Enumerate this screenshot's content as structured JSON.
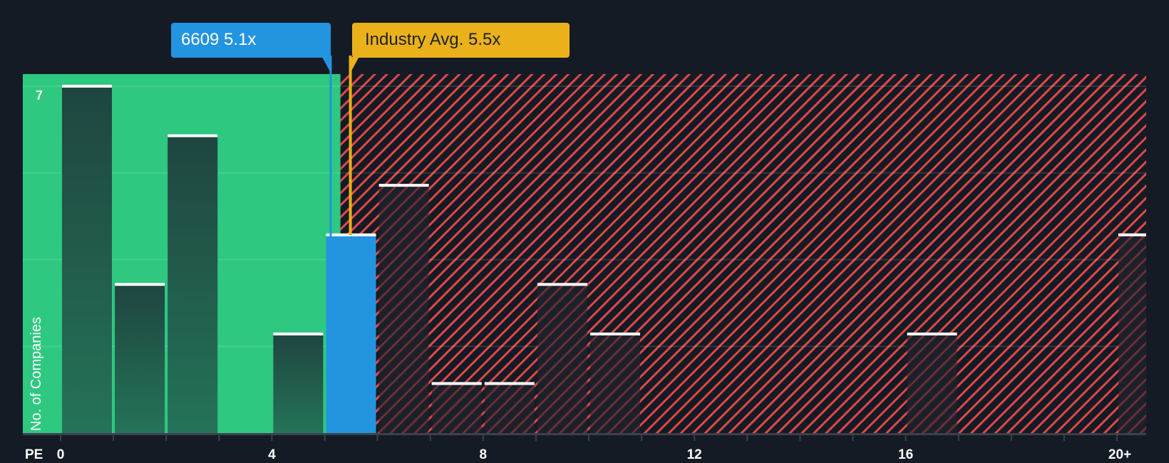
{
  "callouts": {
    "company": {
      "label": "6609 5.1x",
      "ticker": "6609",
      "value": 5.1,
      "color": "#2394df"
    },
    "industry": {
      "label": "Industry Avg. 5.5x",
      "value": 5.5,
      "color": "#ebb11a"
    }
  },
  "axis": {
    "x_label": "PE",
    "y_label": "No. of Companies",
    "y_top_tick": "7",
    "x_ticks": [
      "0",
      "4",
      "8",
      "12",
      "16",
      "20+"
    ]
  },
  "colors": {
    "background": "#151b24",
    "undervalued_zone": "#2ec880",
    "overvalued_hatch": "#e04848",
    "bar_dark": "#1f4a40",
    "highlight_bar": "#2394df"
  },
  "chart_data": {
    "type": "bar",
    "title": "",
    "xlabel": "PE",
    "ylabel": "No. of Companies",
    "categories": [
      "0-1",
      "1-2",
      "2-3",
      "3-4",
      "4-5",
      "5-6",
      "6-7",
      "7-8",
      "8-9",
      "9-10",
      "10-11",
      "11-12",
      "12-13",
      "13-14",
      "14-15",
      "15-16",
      "16-17",
      "17-18",
      "18-19",
      "19-20",
      "20+"
    ],
    "values": [
      7,
      3,
      6,
      0,
      2,
      4,
      5,
      1,
      1,
      3,
      2,
      0,
      0,
      0,
      0,
      0,
      2,
      0,
      0,
      0,
      4
    ],
    "highlight_bin": "5-6",
    "x_ticks": [
      "0",
      "4",
      "8",
      "12",
      "16",
      "20+"
    ],
    "ylim": [
      0,
      7
    ],
    "markers": [
      {
        "name": "6609",
        "value": 5.1
      },
      {
        "name": "Industry Avg.",
        "value": 5.5
      }
    ],
    "zones": [
      {
        "name": "undervalued",
        "from": 0,
        "to": 5.3,
        "style": "solid green"
      },
      {
        "name": "overvalued",
        "from": 5.3,
        "to": 20.5,
        "style": "red hatch"
      }
    ],
    "grid": true,
    "legend": "none"
  }
}
